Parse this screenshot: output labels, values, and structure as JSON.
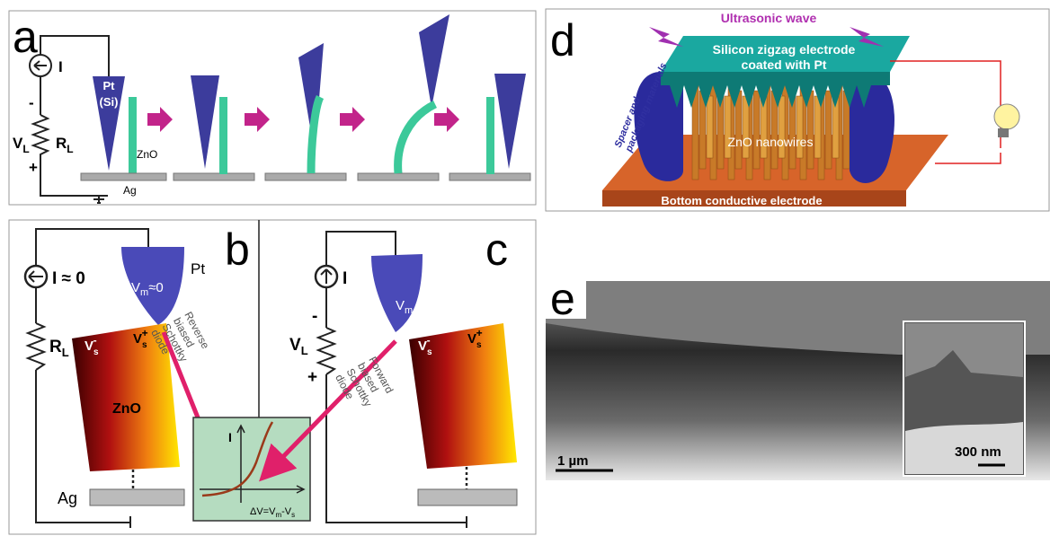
{
  "panel_a": {
    "label": "a",
    "current": "I",
    "minus": "-",
    "plus": "+",
    "voltage": {
      "base": "V",
      "sub": "L"
    },
    "resistor": {
      "base": "R",
      "sub": "L"
    },
    "tip": [
      "Pt",
      "(Si)"
    ],
    "nanowire": "ZnO",
    "substrate": "Ag"
  },
  "panel_b": {
    "label": "b",
    "current": "I ≈ 0",
    "resistor": {
      "base": "R",
      "sub": "L"
    },
    "tip_potential": {
      "base": "V",
      "sub": "m",
      "rest": "≈0"
    },
    "tip": "Pt",
    "potential_minus": {
      "base": "V",
      "sub": "s",
      "sup": "-"
    },
    "potential_plus": {
      "base": "V",
      "sub": "s",
      "sup": "+"
    },
    "nanowire": "ZnO",
    "diode": [
      "Reverse",
      "biased",
      "Schottky",
      "diode"
    ],
    "substrate": "Ag"
  },
  "iv_plot": {
    "y_label": "I",
    "x_label": {
      "a": "ΔV=V",
      "sub1": "m",
      "b": "-V",
      "sub2": "s"
    }
  },
  "panel_c": {
    "label": "c",
    "current": "I",
    "minus": "-",
    "plus": "+",
    "voltage": {
      "base": "V",
      "sub": "L"
    },
    "tip_potential": {
      "base": "V",
      "sub": "m"
    },
    "potential_minus": {
      "base": "V",
      "sub": "s",
      "sup": "-"
    },
    "potential_plus": {
      "base": "V",
      "sub": "s",
      "sup": "+"
    },
    "diode": [
      "Forward",
      "biased",
      "Schottky",
      "diode"
    ]
  },
  "panel_d": {
    "label": "d",
    "wave": "Ultrasonic wave",
    "top_electrode": [
      "Silicon zigzag electrode",
      "coated with Pt"
    ],
    "spacer": [
      "Spacer and",
      "packaging materials"
    ],
    "nanowires": "ZnO nanowires",
    "bottom_electrode": "Bottom conductive electrode"
  },
  "panel_e": {
    "label": "e",
    "scale_main": "1 µm",
    "scale_inset": "300 nm"
  }
}
